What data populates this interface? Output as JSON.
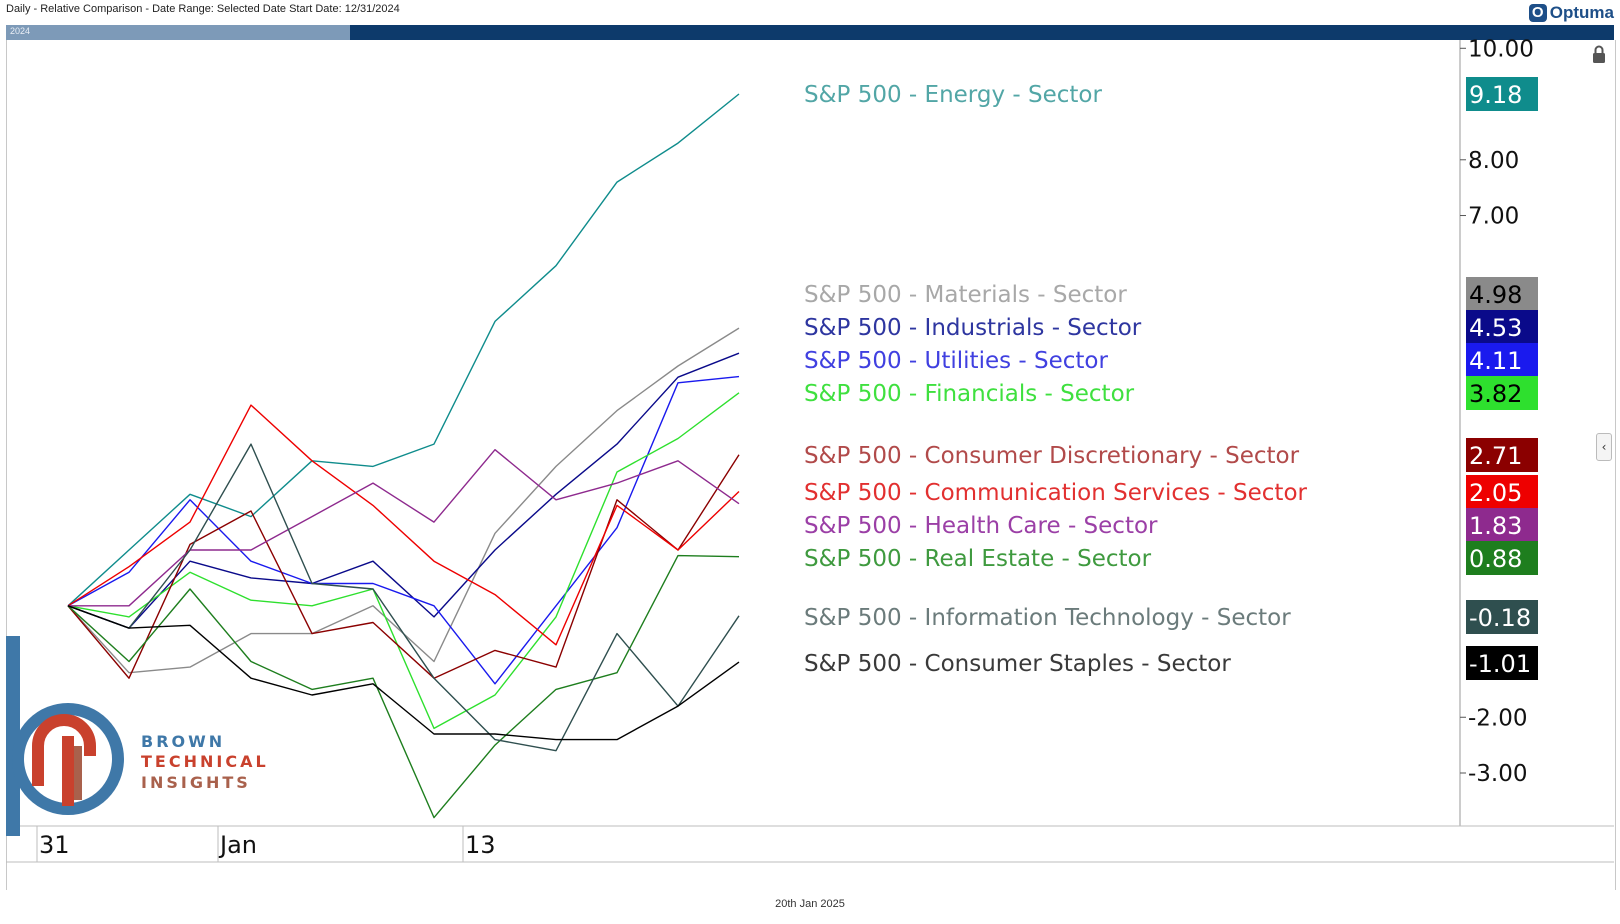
{
  "header": {
    "title": "Daily - Relative Comparison - Date Range: Selected Date  Start Date: 12/31/2024",
    "brand": "Optuma",
    "timeline_year": "2024"
  },
  "footer": {
    "date": "20th Jan 2025"
  },
  "logo": {
    "line1": "BROWN",
    "line2": "TECHNICAL",
    "line3": "INSIGHTS"
  },
  "colors": {
    "timeline": "#0d3a6b",
    "logo_blue": "#3f78a8",
    "logo_red": "#c9412d",
    "logo_brown": "#a9614c"
  },
  "chart_data": {
    "type": "line",
    "x": [
      "12/31/2024",
      "01/02/2025",
      "01/03/2025",
      "01/06/2025",
      "01/07/2025",
      "01/08/2025",
      "01/10/2025",
      "01/13/2025",
      "01/14/2025",
      "01/15/2025",
      "01/16/2025",
      "01/17/2025",
      "01/20/2025"
    ],
    "x_tick_labels": [
      {
        "label": "31",
        "x": "12/31/2024"
      },
      {
        "label": "Jan",
        "x": "01/02/2025"
      },
      {
        "label": "13",
        "x": "01/13/2025"
      }
    ],
    "y_tick_labels": [
      "10.00",
      "8.00",
      "7.00",
      "-2.00",
      "-3.00"
    ],
    "ylim": [
      -4.2,
      10.2
    ],
    "series": [
      {
        "name": "S&P 500 - Energy - Sector",
        "label_color": "#52a6a6",
        "color": "#0f8c8c",
        "value": "9.18",
        "value_fg": "#ffffff",
        "values": [
          0,
          1,
          2,
          1.6,
          2.6,
          2.5,
          2.9,
          5.1,
          6.1,
          7.6,
          8.3,
          9.18,
          null
        ]
      },
      {
        "name": "S&P 500 - Materials - Sector",
        "label_color": "#a8a8a8",
        "color": "#8a8a8a",
        "value": "4.98",
        "value_fg": "#000000",
        "values": [
          0,
          -1.2,
          -1.1,
          -0.5,
          -0.5,
          0,
          -1,
          1.3,
          2.5,
          3.5,
          4.3,
          4.98,
          null
        ]
      },
      {
        "name": "S&P 500 - Industrials - Sector",
        "label_color": "#2e36a0",
        "color": "#0a0a8a",
        "value": "4.53",
        "value_fg": "#ffffff",
        "values": [
          0,
          -0.4,
          0.8,
          0.5,
          0.4,
          0.8,
          -0.2,
          1,
          2,
          2.9,
          4.1,
          4.53,
          null
        ]
      },
      {
        "name": "S&P 500 - Utilities - Sector",
        "label_color": "#4040e0",
        "color": "#1a1aee",
        "value": "4.11",
        "value_fg": "#ffffff",
        "values": [
          0,
          0.6,
          1.9,
          0.8,
          0.4,
          0.4,
          0,
          -1.4,
          0,
          1.4,
          4,
          4.11,
          null
        ]
      },
      {
        "name": "S&P 500 - Financials - Sector",
        "label_color": "#3fe03f",
        "color": "#2ee02e",
        "value": "3.82",
        "value_fg": "#000000",
        "values": [
          0,
          -0.2,
          0.6,
          0.1,
          0,
          0.3,
          -2.2,
          -1.6,
          -0.2,
          2.4,
          3,
          3.82,
          null
        ]
      },
      {
        "name": "S&P 500 - Consumer Discretionary - Sector",
        "label_color": "#b14a4a",
        "color": "#8b0000",
        "value": "2.71",
        "value_fg": "#ffffff",
        "values": [
          0,
          -1.3,
          1.1,
          1.7,
          -0.5,
          -0.3,
          -1.3,
          -0.8,
          -1.1,
          1.9,
          1,
          2.71,
          null
        ]
      },
      {
        "name": "S&P 500 - Communication Services - Sector",
        "label_color": "#e23030",
        "color": "#ee0000",
        "value": "2.05",
        "value_fg": "#ffffff",
        "values": [
          0,
          0.7,
          1.5,
          3.6,
          2.6,
          1.8,
          0.8,
          0.2,
          -0.7,
          1.8,
          1,
          2.05,
          null
        ]
      },
      {
        "name": "S&P 500 - Health Care - Sector",
        "label_color": "#9b3fa6",
        "color": "#8e2a8e",
        "value": "1.83",
        "value_fg": "#ffffff",
        "values": [
          0,
          0,
          1,
          1,
          1.6,
          2.2,
          1.5,
          2.8,
          1.9,
          2.2,
          2.6,
          1.83,
          null
        ]
      },
      {
        "name": "S&P 500 - Real Estate - Sector",
        "label_color": "#3f9a3f",
        "color": "#1e7e1e",
        "value": "0.88",
        "value_fg": "#ffffff",
        "values": [
          0,
          -1,
          0.3,
          -1,
          -1.5,
          -1.3,
          -3.8,
          -2.5,
          -1.5,
          -1.2,
          0.9,
          0.88,
          null
        ]
      },
      {
        "name": "S&P 500 - Information Technology - Sector",
        "label_color": "#6b7b7b",
        "color": "#2f4f4f",
        "value": "-0.18",
        "value_fg": "#ffffff",
        "values": [
          0,
          -0.4,
          1,
          2.9,
          0.4,
          0.3,
          -1.3,
          -2.4,
          -2.6,
          -0.5,
          -1.8,
          -0.18,
          null
        ]
      },
      {
        "name": "S&P 500 - Consumer Staples - Sector",
        "label_color": "#3a3a3a",
        "color": "#000000",
        "value": "-1.01",
        "value_fg": "#ffffff",
        "values": [
          0,
          -0.4,
          -0.35,
          -1.3,
          -1.6,
          -1.4,
          -2.3,
          -2.3,
          -2.4,
          -2.4,
          -1.8,
          -1.01,
          null
        ]
      }
    ],
    "legend_placement": "right of lines, inline labels",
    "grid": false
  }
}
